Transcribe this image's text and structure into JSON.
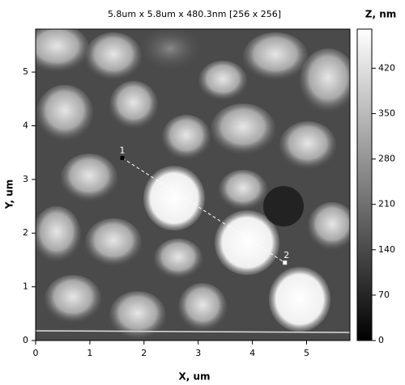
{
  "chart_data": {
    "type": "image",
    "title": "5.8um x 5.8um x 480.3nm [256 x 256]",
    "x_label": "X, um",
    "y_label": "Y, um",
    "xlim": [
      0,
      5.8
    ],
    "ylim": [
      0,
      5.8
    ],
    "xticks": [
      0,
      1,
      2,
      3,
      4,
      5
    ],
    "yticks": [
      0,
      1,
      2,
      3,
      4,
      5
    ],
    "colorbar": {
      "title": "Z, nm",
      "lim": [
        0,
        480.3
      ],
      "ticks": [
        0,
        70,
        140,
        210,
        280,
        350,
        420
      ]
    },
    "markers": [
      {
        "label": "1",
        "x": 1.6,
        "y": 3.4
      },
      {
        "label": "2",
        "x": 4.6,
        "y": 1.45
      }
    ]
  }
}
